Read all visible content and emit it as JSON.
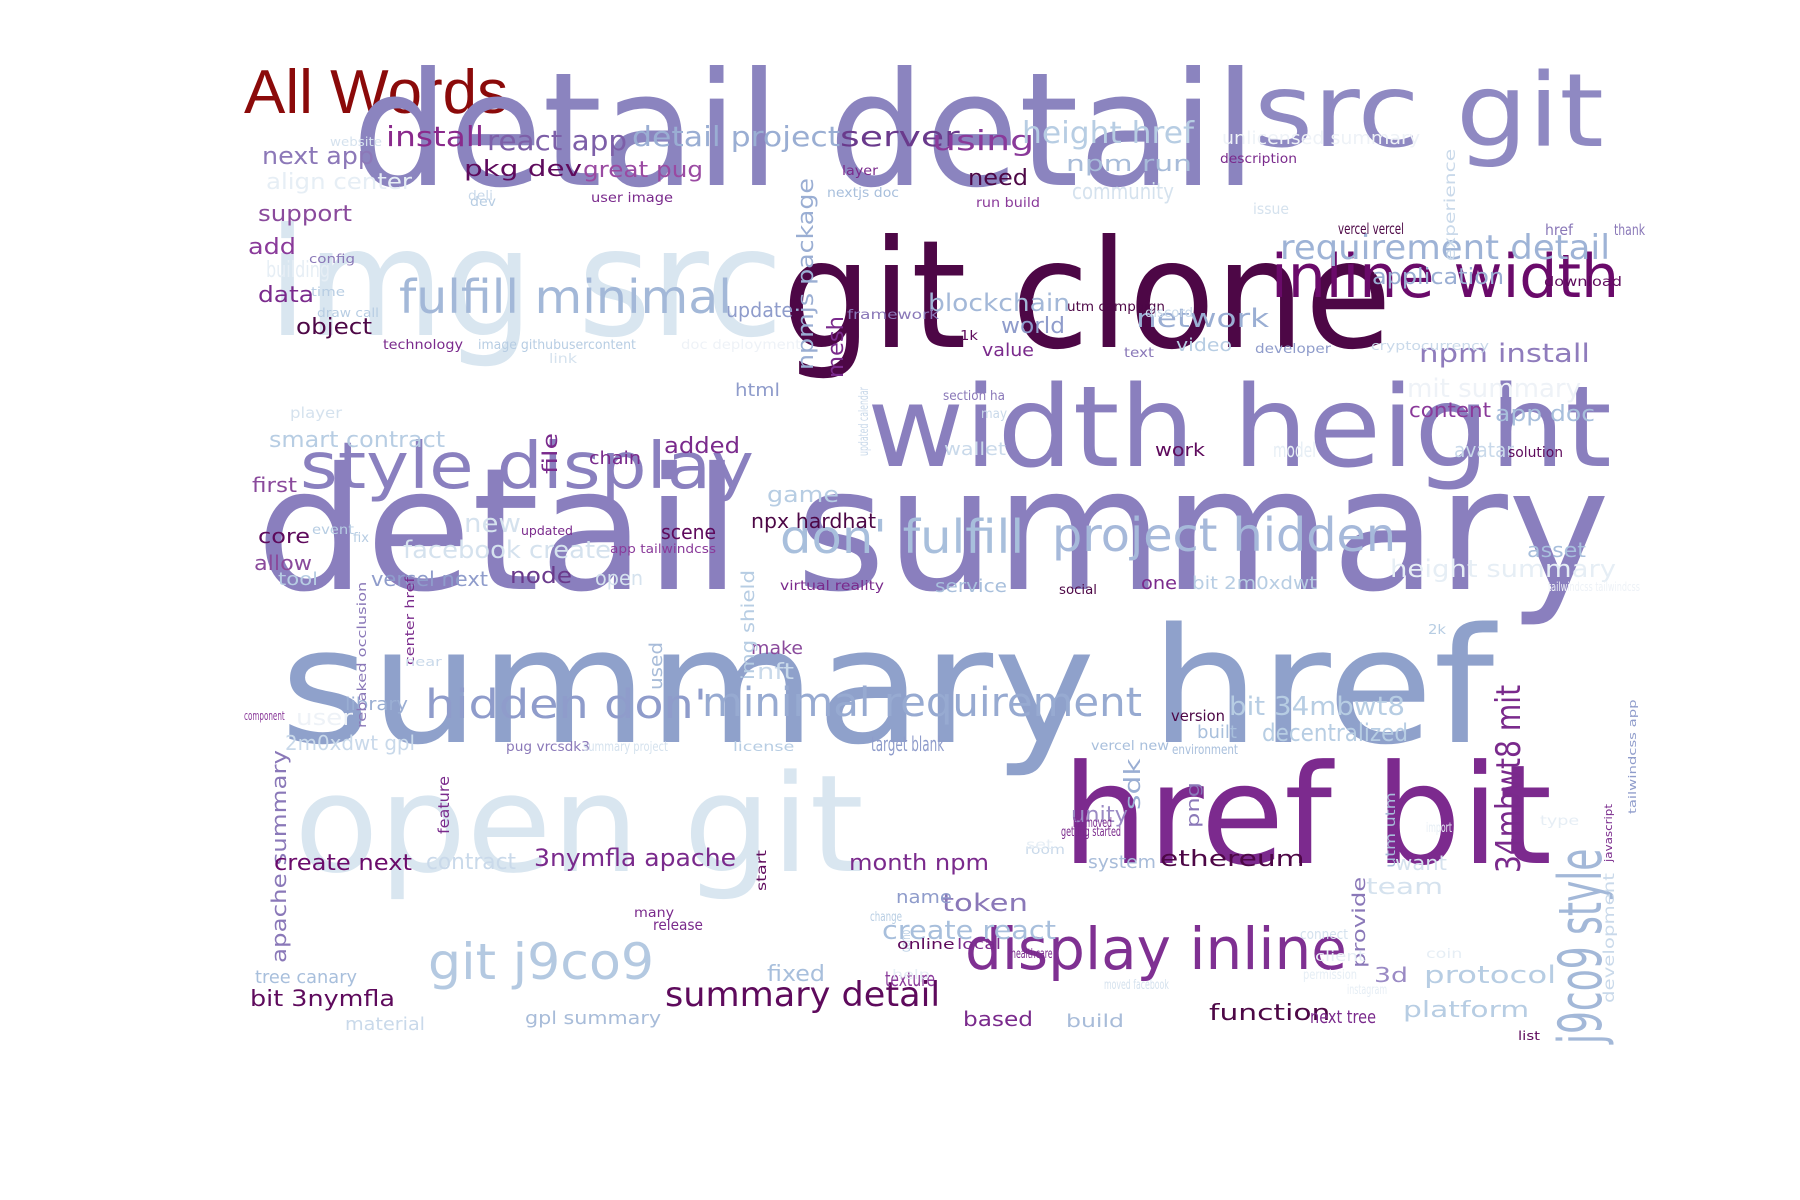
{
  "title": "All Words",
  "colors": {
    "title": "#8b0a0a",
    "background": "#ffffff"
  },
  "words": [
    {
      "text": "detail detail",
      "color": "#8b84bf"
    },
    {
      "text": "src git",
      "color": "#8f89c2"
    },
    {
      "text": "img src",
      "color": "#d9e6f0"
    },
    {
      "text": "git clone",
      "color": "#4d0746"
    },
    {
      "text": "width height",
      "color": "#8a7fbe"
    },
    {
      "text": "style display",
      "color": "#8a80bf"
    },
    {
      "text": "detail summary",
      "color": "#8a7fbe"
    },
    {
      "text": "summary href",
      "color": "#8fa1cb"
    },
    {
      "text": "open git",
      "color": "#d9e6f0"
    },
    {
      "text": "href bit",
      "color": "#7c2a8e"
    },
    {
      "text": "inline width",
      "color": "#6a0a6a"
    },
    {
      "text": "fulfill minimal",
      "color": "#a3b8d8"
    },
    {
      "text": "don' fulfill",
      "color": "#a8bfdc"
    },
    {
      "text": "project hidden",
      "color": "#a6b9da"
    },
    {
      "text": "hidden don'",
      "color": "#8f9ccb"
    },
    {
      "text": "minimal requirement",
      "color": "#97aad1"
    },
    {
      "text": "display inline",
      "color": "#7f3092"
    },
    {
      "text": "git j9co9",
      "color": "#b4c9e1"
    },
    {
      "text": "summary detail",
      "color": "#5e0a5c"
    },
    {
      "text": "requirement detail",
      "color": "#9eb3d6"
    },
    {
      "text": "j9co9 style",
      "color": "#a3b8d8"
    },
    {
      "text": "34mbwt8 mit",
      "color": "#7a2a8c"
    },
    {
      "text": "install",
      "color": "#8a2a8c"
    },
    {
      "text": "react app",
      "color": "#7d5fa8"
    },
    {
      "text": "detail project",
      "color": "#9aaed3"
    },
    {
      "text": "server",
      "color": "#6a3a8c"
    },
    {
      "text": "using",
      "color": "#8a3a9a"
    },
    {
      "text": "height href",
      "color": "#b7cde3"
    },
    {
      "text": "unlicensed summary",
      "color": "#eef2f7"
    },
    {
      "text": "next app",
      "color": "#8c78b8"
    },
    {
      "text": "pkg dev",
      "color": "#5e0a5c"
    },
    {
      "text": "great pug",
      "color": "#9a4aa2"
    },
    {
      "text": "npm run",
      "color": "#a8bcd9"
    },
    {
      "text": "need",
      "color": "#4d0746"
    },
    {
      "text": "align center",
      "color": "#e6eef5"
    },
    {
      "text": "support",
      "color": "#8a4a9c"
    },
    {
      "text": "add",
      "color": "#8a3a9a"
    },
    {
      "text": "data",
      "color": "#7a2a8c"
    },
    {
      "text": "object",
      "color": "#4d0746"
    },
    {
      "text": "npmjs package",
      "color": "#9aaed3"
    },
    {
      "text": "mesh",
      "color": "#7a2a8c"
    },
    {
      "text": "update",
      "color": "#8f9ccb"
    },
    {
      "text": "blockchain",
      "color": "#a3b8d8"
    },
    {
      "text": "world",
      "color": "#8f9ccb"
    },
    {
      "text": "value",
      "color": "#7a2a8c"
    },
    {
      "text": "network",
      "color": "#9aaed3"
    },
    {
      "text": "video",
      "color": "#b7cde3"
    },
    {
      "text": "npm install",
      "color": "#8f7cbc"
    },
    {
      "text": "application",
      "color": "#9aaed3"
    },
    {
      "text": "content",
      "color": "#8a3a9a"
    },
    {
      "text": "app doc",
      "color": "#a8bfdc"
    },
    {
      "text": "html",
      "color": "#8f9ccb"
    },
    {
      "text": "file",
      "color": "#7a2a8c"
    },
    {
      "text": "chain",
      "color": "#7a2a8c"
    },
    {
      "text": "added",
      "color": "#7a2a8c"
    },
    {
      "text": "smart contract",
      "color": "#b7cde3"
    },
    {
      "text": "first",
      "color": "#8a4a9c"
    },
    {
      "text": "core",
      "color": "#5e0a5c"
    },
    {
      "text": "allow",
      "color": "#8a4a9c"
    },
    {
      "text": "tool",
      "color": "#b7cde3"
    },
    {
      "text": "new",
      "color": "#d5e2ee"
    },
    {
      "text": "facebook create",
      "color": "#d5e2ee"
    },
    {
      "text": "vercel next",
      "color": "#8f9ccb"
    },
    {
      "text": "node",
      "color": "#6a3a8c"
    },
    {
      "text": "game",
      "color": "#b7cde3"
    },
    {
      "text": "scene",
      "color": "#5e0a5c"
    },
    {
      "text": "npx hardhat",
      "color": "#4d0746"
    },
    {
      "text": "work",
      "color": "#5e0a5c"
    },
    {
      "text": "wallet",
      "color": "#c9d9ea"
    },
    {
      "text": "asset",
      "color": "#a8bfdc"
    },
    {
      "text": "service",
      "color": "#a8bfdc"
    },
    {
      "text": "one",
      "color": "#7a2a8c"
    },
    {
      "text": "bit 2m0xdwt",
      "color": "#b7cde3"
    },
    {
      "text": "height summary",
      "color": "#e6eef5"
    },
    {
      "text": "make",
      "color": "#8a4a9c"
    },
    {
      "text": "nft",
      "color": "#c9d9ea"
    },
    {
      "text": "library",
      "color": "#9aaed3"
    },
    {
      "text": "used",
      "color": "#a8bcd9"
    },
    {
      "text": "img shield",
      "color": "#b7cde3"
    },
    {
      "text": "bit 34mbwt8",
      "color": "#b7cde3"
    },
    {
      "text": "built",
      "color": "#a8bfdc"
    },
    {
      "text": "decentralized",
      "color": "#b7cde3"
    },
    {
      "text": "version",
      "color": "#4d0746"
    },
    {
      "text": "2m0xdwt gpl",
      "color": "#c9d9ea"
    },
    {
      "text": "user",
      "color": "#eef2f7"
    },
    {
      "text": "apache summary",
      "color": "#8a78b8"
    },
    {
      "text": "feature",
      "color": "#7a2a8c"
    },
    {
      "text": "sdk",
      "color": "#9aaed3"
    },
    {
      "text": "unity",
      "color": "#9a8ac4"
    },
    {
      "text": "png",
      "color": "#8a78b8"
    },
    {
      "text": "create next",
      "color": "#6a0a6a"
    },
    {
      "text": "contract",
      "color": "#c9d9ea"
    },
    {
      "text": "3nymfla apache",
      "color": "#7a2a8c"
    },
    {
      "text": "month npm",
      "color": "#7a2a8c"
    },
    {
      "text": "system",
      "color": "#a8bcd9"
    },
    {
      "text": "ethereum",
      "color": "#4d0746"
    },
    {
      "text": "want",
      "color": "#d5e2ee"
    },
    {
      "text": "token",
      "color": "#8a78b8"
    },
    {
      "text": "name",
      "color": "#8f9ccb"
    },
    {
      "text": "create react",
      "color": "#a8bfdc"
    },
    {
      "text": "provide",
      "color": "#8a78b8"
    },
    {
      "text": "tree canary",
      "color": "#a8bfdc"
    },
    {
      "text": "bit 3nymfla",
      "color": "#5e0a5c"
    },
    {
      "text": "fixed",
      "color": "#a8bfdc"
    },
    {
      "text": "3d",
      "color": "#9a8ac4"
    },
    {
      "text": "protocol",
      "color": "#b7cde3"
    },
    {
      "text": "based",
      "color": "#7a2a8c"
    },
    {
      "text": "build",
      "color": "#a8bcd9"
    },
    {
      "text": "function",
      "color": "#4d0746"
    },
    {
      "text": "next tree",
      "color": "#7a2a8c"
    },
    {
      "text": "platform",
      "color": "#b7cde3"
    },
    {
      "text": "material",
      "color": "#c9d9ea"
    },
    {
      "text": "gpl summary",
      "color": "#a8bcd9"
    },
    {
      "text": "list",
      "color": "#5e0a5c"
    },
    {
      "text": "experience",
      "color": "#c9d9ea"
    },
    {
      "text": "development",
      "color": "#c9d9ea"
    },
    {
      "text": "javascript",
      "color": "#7a2a8c"
    },
    {
      "text": "tailwindcss app",
      "color": "#8f9ccb"
    },
    {
      "text": "rebaked occlusion",
      "color": "#8a78b8"
    },
    {
      "text": "website",
      "color": "#d5e2ee"
    },
    {
      "text": "layer",
      "color": "#7a2a8c"
    },
    {
      "text": "description",
      "color": "#7a2a8c"
    },
    {
      "text": "deli",
      "color": "#c9d9ea"
    },
    {
      "text": "user image",
      "color": "#7a2a8c"
    },
    {
      "text": "nextjs doc",
      "color": "#a8bfdc"
    },
    {
      "text": "run build",
      "color": "#8a3a9a"
    },
    {
      "text": "community",
      "color": "#d5e2ee"
    },
    {
      "text": "dev",
      "color": "#b7cde3"
    },
    {
      "text": "issue",
      "color": "#d5e2ee"
    },
    {
      "text": "vercel vercel",
      "color": "#4d0746"
    },
    {
      "text": "thank",
      "color": "#8a78b8"
    },
    {
      "text": "href",
      "color": "#8a78b8"
    },
    {
      "text": "config",
      "color": "#8a78b8"
    },
    {
      "text": "building",
      "color": "#e6eef5"
    },
    {
      "text": "time",
      "color": "#b7cde3"
    },
    {
      "text": "download",
      "color": "#5e0a5c"
    },
    {
      "text": "draw call",
      "color": "#b7cde3"
    },
    {
      "text": "framework",
      "color": "#8a78b8"
    },
    {
      "text": "utm campaign",
      "color": "#4d0746"
    },
    {
      "text": "discord",
      "color": "#c9d9ea"
    },
    {
      "text": "technology",
      "color": "#7a2a8c"
    },
    {
      "text": "image githubusercontent",
      "color": "#b7cde3"
    },
    {
      "text": "link",
      "color": "#d5e2ee"
    },
    {
      "text": "doc deployment",
      "color": "#eef2f7"
    },
    {
      "text": "1k",
      "color": "#5e0a5c"
    },
    {
      "text": "text",
      "color": "#8a78b8"
    },
    {
      "text": "developer",
      "color": "#8f9ccb"
    },
    {
      "text": "cryptocurrency",
      "color": "#c9d9ea"
    },
    {
      "text": "section ha",
      "color": "#8a78b8"
    },
    {
      "text": "may",
      "color": "#c9d9ea"
    },
    {
      "text": "updated calendar",
      "color": "#c9d9ea"
    },
    {
      "text": "mit summary",
      "color": "#eef2f7"
    },
    {
      "text": "model",
      "color": "#e6eef5"
    },
    {
      "text": "avatar",
      "color": "#c9d9ea"
    },
    {
      "text": "solution",
      "color": "#5e0a5c"
    },
    {
      "text": "player",
      "color": "#d5e2ee"
    },
    {
      "text": "event",
      "color": "#b7cde3"
    },
    {
      "text": "fix",
      "color": "#b7cde3"
    },
    {
      "text": "updated",
      "color": "#7a2a8c"
    },
    {
      "text": "app tailwindcss",
      "color": "#8a3a9a"
    },
    {
      "text": "open",
      "color": "#d5e2ee"
    },
    {
      "text": "virtual reality",
      "color": "#7a2a8c"
    },
    {
      "text": "social",
      "color": "#4d0746"
    },
    {
      "text": "tailwindcss tailwindcss",
      "color": "#eef2f7"
    },
    {
      "text": "2k",
      "color": "#b7cde3"
    },
    {
      "text": "center href",
      "color": "#7a2a8c"
    },
    {
      "text": "near",
      "color": "#c9d9ea"
    },
    {
      "text": "component",
      "color": "#8a3a9a"
    },
    {
      "text": "pug vrcsdk3",
      "color": "#8a78b8"
    },
    {
      "text": "summary project",
      "color": "#d5e2ee"
    },
    {
      "text": "license",
      "color": "#b7cde3"
    },
    {
      "text": "target blank",
      "color": "#8f9ccb"
    },
    {
      "text": "vercel new",
      "color": "#a8bfdc"
    },
    {
      "text": "environment",
      "color": "#a8bfdc"
    },
    {
      "text": "type",
      "color": "#e6eef5"
    },
    {
      "text": "utm utm",
      "color": "#a8bcd9"
    },
    {
      "text": "import",
      "color": "#e6eef5"
    },
    {
      "text": "start",
      "color": "#5e0a5c"
    },
    {
      "text": "demo",
      "color": "#b7cde3"
    },
    {
      "text": "ha moved",
      "color": "#7a2a8c"
    },
    {
      "text": "room",
      "color": "#c9d9ea"
    },
    {
      "text": "getting started",
      "color": "#7a2a8c"
    },
    {
      "text": "set",
      "color": "#e6eef5"
    },
    {
      "text": "many",
      "color": "#7a2a8c"
    },
    {
      "text": "change",
      "color": "#b7cde3"
    },
    {
      "text": "local",
      "color": "#7a2a8c"
    },
    {
      "text": "client",
      "color": "#e6eef5"
    },
    {
      "text": "connect",
      "color": "#d5e2ee"
    },
    {
      "text": "release",
      "color": "#7a2a8c"
    },
    {
      "text": "online",
      "color": "#5e0a5c"
    },
    {
      "text": "texture",
      "color": "#8a3a9a"
    },
    {
      "text": "healthcare",
      "color": "#7a2a8c"
    },
    {
      "text": "moved facebook",
      "color": "#d5e2ee"
    },
    {
      "text": "team",
      "color": "#d5e2ee"
    },
    {
      "text": "coin",
      "color": "#e6eef5"
    },
    {
      "text": "help",
      "color": "#e6eef5"
    },
    {
      "text": "permission",
      "color": "#e6eef5"
    },
    {
      "text": "instagram",
      "color": "#e6eef5"
    }
  ]
}
